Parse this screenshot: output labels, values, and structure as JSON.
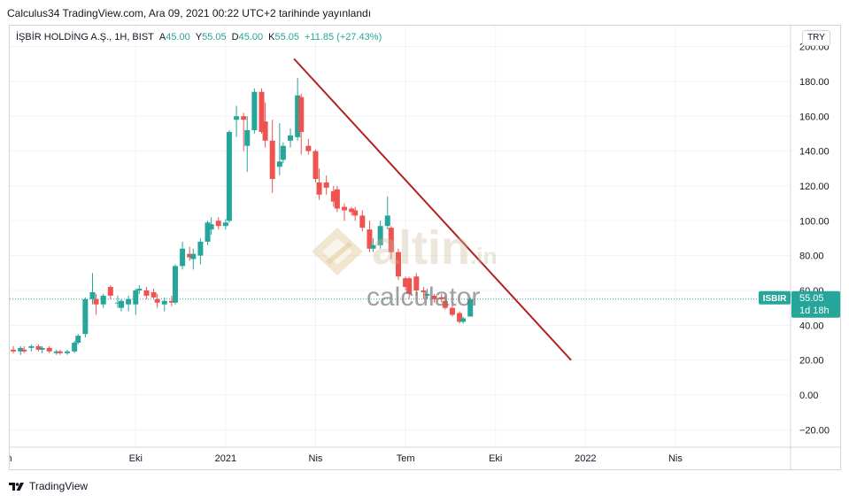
{
  "caption": "Calculus34 TradingView.com, Ara 09, 2021 00:22 UTC+2 tarihinde yayınlandı",
  "legend": {
    "symbol": "İŞBİR HOLDİNG A.Ş., 1H, BIST",
    "open_label": "A",
    "open": "45.00",
    "high_label": "Y",
    "high": "55.05",
    "low_label": "D",
    "low": "45.00",
    "close_label": "K",
    "close": "55.05",
    "change": "+11.85 (+27.43%)"
  },
  "currency_badge": "TRY",
  "footer_brand": "TradingView",
  "watermark": {
    "brand": "altin",
    "suffix": ".in",
    "sub": "calculator"
  },
  "colors": {
    "up": "#26a69a",
    "down": "#ef5350",
    "trendline": "#b22222",
    "grid": "#f0f3fa",
    "axis_text": "#131722"
  },
  "chart_data": {
    "type": "candlestick",
    "ticker": "ISBIR",
    "last_price_label": "55.05",
    "countdown_label": "1d 18h",
    "ylim": [
      -30,
      212
    ],
    "y_ticks": [
      -20,
      0,
      20,
      40,
      60,
      80,
      100,
      120,
      140,
      160,
      180,
      200
    ],
    "y_tick_labels": [
      "−20.00",
      "0.00",
      "20.00",
      "40.00",
      "60.00",
      "80.00",
      "100.00",
      "120.00",
      "140.00",
      "160.00",
      "180.00",
      "200.00"
    ],
    "x_range": [
      2020.4,
      2022.57
    ],
    "x_ticks": [
      {
        "x": 2020.75,
        "label": "Eki"
      },
      {
        "x": 2021.0,
        "label": "2021"
      },
      {
        "x": 2021.25,
        "label": "Nis"
      },
      {
        "x": 2021.5,
        "label": "Tem"
      },
      {
        "x": 2021.75,
        "label": "Eki"
      },
      {
        "x": 2022.0,
        "label": "2022"
      },
      {
        "x": 2022.25,
        "label": "Nis"
      }
    ],
    "partial_left_tick": {
      "x": 2020.4,
      "label": "m"
    },
    "candles": [
      {
        "x": 2020.41,
        "o": 26,
        "h": 28,
        "l": 24,
        "c": 25
      },
      {
        "x": 2020.43,
        "o": 25,
        "h": 28,
        "l": 23,
        "c": 27
      },
      {
        "x": 2020.44,
        "o": 26,
        "h": 28,
        "l": 24,
        "c": 25
      },
      {
        "x": 2020.46,
        "o": 27,
        "h": 29,
        "l": 25,
        "c": 28
      },
      {
        "x": 2020.48,
        "o": 28,
        "h": 29,
        "l": 25,
        "c": 26
      },
      {
        "x": 2020.49,
        "o": 26,
        "h": 28,
        "l": 24,
        "c": 27
      },
      {
        "x": 2020.51,
        "o": 27,
        "h": 28,
        "l": 24,
        "c": 25
      },
      {
        "x": 2020.53,
        "o": 24,
        "h": 26,
        "l": 23,
        "c": 25
      },
      {
        "x": 2020.54,
        "o": 25,
        "h": 26,
        "l": 23,
        "c": 24
      },
      {
        "x": 2020.56,
        "o": 24,
        "h": 26,
        "l": 23,
        "c": 25
      },
      {
        "x": 2020.58,
        "o": 25,
        "h": 31,
        "l": 24,
        "c": 30
      },
      {
        "x": 2020.59,
        "o": 30,
        "h": 35,
        "l": 29,
        "c": 34
      },
      {
        "x": 2020.61,
        "o": 35,
        "h": 56,
        "l": 33,
        "c": 55
      },
      {
        "x": 2020.63,
        "o": 55,
        "h": 70,
        "l": 52,
        "c": 59
      },
      {
        "x": 2020.64,
        "o": 55,
        "h": 58,
        "l": 46,
        "c": 52
      },
      {
        "x": 2020.66,
        "o": 52,
        "h": 58,
        "l": 50,
        "c": 57
      },
      {
        "x": 2020.68,
        "o": 62,
        "h": 63,
        "l": 55,
        "c": 57
      },
      {
        "x": 2020.7,
        "o": 53,
        "h": 57,
        "l": 50,
        "c": 53
      },
      {
        "x": 2020.71,
        "o": 50,
        "h": 55,
        "l": 48,
        "c": 54
      },
      {
        "x": 2020.73,
        "o": 52,
        "h": 57,
        "l": 48,
        "c": 55
      },
      {
        "x": 2020.75,
        "o": 52,
        "h": 61,
        "l": 46,
        "c": 60
      },
      {
        "x": 2020.76,
        "o": 60,
        "h": 63,
        "l": 58,
        "c": 61
      },
      {
        "x": 2020.78,
        "o": 60,
        "h": 62,
        "l": 55,
        "c": 57
      },
      {
        "x": 2020.8,
        "o": 59,
        "h": 61,
        "l": 55,
        "c": 56
      },
      {
        "x": 2020.81,
        "o": 55,
        "h": 58,
        "l": 50,
        "c": 53
      },
      {
        "x": 2020.83,
        "o": 52,
        "h": 56,
        "l": 48,
        "c": 54
      },
      {
        "x": 2020.85,
        "o": 54,
        "h": 57,
        "l": 51,
        "c": 53
      },
      {
        "x": 2020.86,
        "o": 53,
        "h": 75,
        "l": 52,
        "c": 74
      },
      {
        "x": 2020.88,
        "o": 74,
        "h": 88,
        "l": 72,
        "c": 84
      },
      {
        "x": 2020.9,
        "o": 81,
        "h": 85,
        "l": 77,
        "c": 79
      },
      {
        "x": 2020.91,
        "o": 78,
        "h": 84,
        "l": 72,
        "c": 81
      },
      {
        "x": 2020.93,
        "o": 80,
        "h": 90,
        "l": 75,
        "c": 88
      },
      {
        "x": 2020.95,
        "o": 88,
        "h": 100,
        "l": 86,
        "c": 99
      },
      {
        "x": 2020.96,
        "o": 95,
        "h": 102,
        "l": 92,
        "c": 98
      },
      {
        "x": 2020.98,
        "o": 100,
        "h": 102,
        "l": 95,
        "c": 97
      },
      {
        "x": 2021.0,
        "o": 97,
        "h": 101,
        "l": 95,
        "c": 99
      },
      {
        "x": 2021.01,
        "o": 100,
        "h": 152,
        "l": 99,
        "c": 151
      },
      {
        "x": 2021.03,
        "o": 158,
        "h": 166,
        "l": 148,
        "c": 160
      },
      {
        "x": 2021.05,
        "o": 160,
        "h": 162,
        "l": 140,
        "c": 158
      },
      {
        "x": 2021.06,
        "o": 143,
        "h": 160,
        "l": 128,
        "c": 152
      },
      {
        "x": 2021.08,
        "o": 152,
        "h": 176,
        "l": 150,
        "c": 174
      },
      {
        "x": 2021.1,
        "o": 174,
        "h": 176,
        "l": 150,
        "c": 151
      },
      {
        "x": 2021.11,
        "o": 157,
        "h": 168,
        "l": 142,
        "c": 146
      },
      {
        "x": 2021.13,
        "o": 146,
        "h": 158,
        "l": 116,
        "c": 124
      },
      {
        "x": 2021.15,
        "o": 131,
        "h": 156,
        "l": 126,
        "c": 134
      },
      {
        "x": 2021.16,
        "o": 135,
        "h": 145,
        "l": 133,
        "c": 143
      },
      {
        "x": 2021.18,
        "o": 146,
        "h": 153,
        "l": 142,
        "c": 149
      },
      {
        "x": 2021.2,
        "o": 148,
        "h": 182,
        "l": 146,
        "c": 172
      },
      {
        "x": 2021.21,
        "o": 171,
        "h": 173,
        "l": 138,
        "c": 151
      },
      {
        "x": 2021.23,
        "o": 143,
        "h": 147,
        "l": 138,
        "c": 140
      },
      {
        "x": 2021.25,
        "o": 140,
        "h": 141,
        "l": 122,
        "c": 124
      },
      {
        "x": 2021.26,
        "o": 122,
        "h": 130,
        "l": 112,
        "c": 115
      },
      {
        "x": 2021.28,
        "o": 122,
        "h": 126,
        "l": 115,
        "c": 119
      },
      {
        "x": 2021.3,
        "o": 117,
        "h": 120,
        "l": 108,
        "c": 111
      },
      {
        "x": 2021.31,
        "o": 118,
        "h": 120,
        "l": 105,
        "c": 107
      },
      {
        "x": 2021.33,
        "o": 108,
        "h": 110,
        "l": 100,
        "c": 106
      },
      {
        "x": 2021.35,
        "o": 107,
        "h": 108,
        "l": 103,
        "c": 105
      },
      {
        "x": 2021.36,
        "o": 106,
        "h": 108,
        "l": 100,
        "c": 103
      },
      {
        "x": 2021.38,
        "o": 103,
        "h": 106,
        "l": 94,
        "c": 96
      },
      {
        "x": 2021.4,
        "o": 95,
        "h": 100,
        "l": 82,
        "c": 84
      },
      {
        "x": 2021.41,
        "o": 84,
        "h": 90,
        "l": 82,
        "c": 86
      },
      {
        "x": 2021.43,
        "o": 86,
        "h": 100,
        "l": 84,
        "c": 97
      },
      {
        "x": 2021.45,
        "o": 97,
        "h": 114,
        "l": 95,
        "c": 103
      },
      {
        "x": 2021.46,
        "o": 96,
        "h": 97,
        "l": 78,
        "c": 82
      },
      {
        "x": 2021.48,
        "o": 82,
        "h": 84,
        "l": 66,
        "c": 68
      },
      {
        "x": 2021.5,
        "o": 67,
        "h": 68,
        "l": 60,
        "c": 62
      },
      {
        "x": 2021.51,
        "o": 67,
        "h": 68,
        "l": 55,
        "c": 58
      },
      {
        "x": 2021.53,
        "o": 68,
        "h": 70,
        "l": 57,
        "c": 60
      },
      {
        "x": 2021.55,
        "o": 60,
        "h": 62,
        "l": 55,
        "c": 59
      },
      {
        "x": 2021.56,
        "o": 57,
        "h": 61,
        "l": 55,
        "c": 58
      },
      {
        "x": 2021.58,
        "o": 57,
        "h": 58,
        "l": 53,
        "c": 55
      },
      {
        "x": 2021.6,
        "o": 56,
        "h": 58,
        "l": 53,
        "c": 55
      },
      {
        "x": 2021.61,
        "o": 54,
        "h": 57,
        "l": 49,
        "c": 50
      },
      {
        "x": 2021.63,
        "o": 50,
        "h": 52,
        "l": 45,
        "c": 46
      },
      {
        "x": 2021.65,
        "o": 47,
        "h": 48,
        "l": 41,
        "c": 42
      },
      {
        "x": 2021.66,
        "o": 42,
        "h": 45,
        "l": 41,
        "c": 44
      },
      {
        "x": 2021.68,
        "o": 45,
        "h": 56,
        "l": 45,
        "c": 55
      }
    ],
    "trendline": {
      "x1": 2021.19,
      "y1": 193,
      "x2": 2021.96,
      "y2": 20
    }
  }
}
